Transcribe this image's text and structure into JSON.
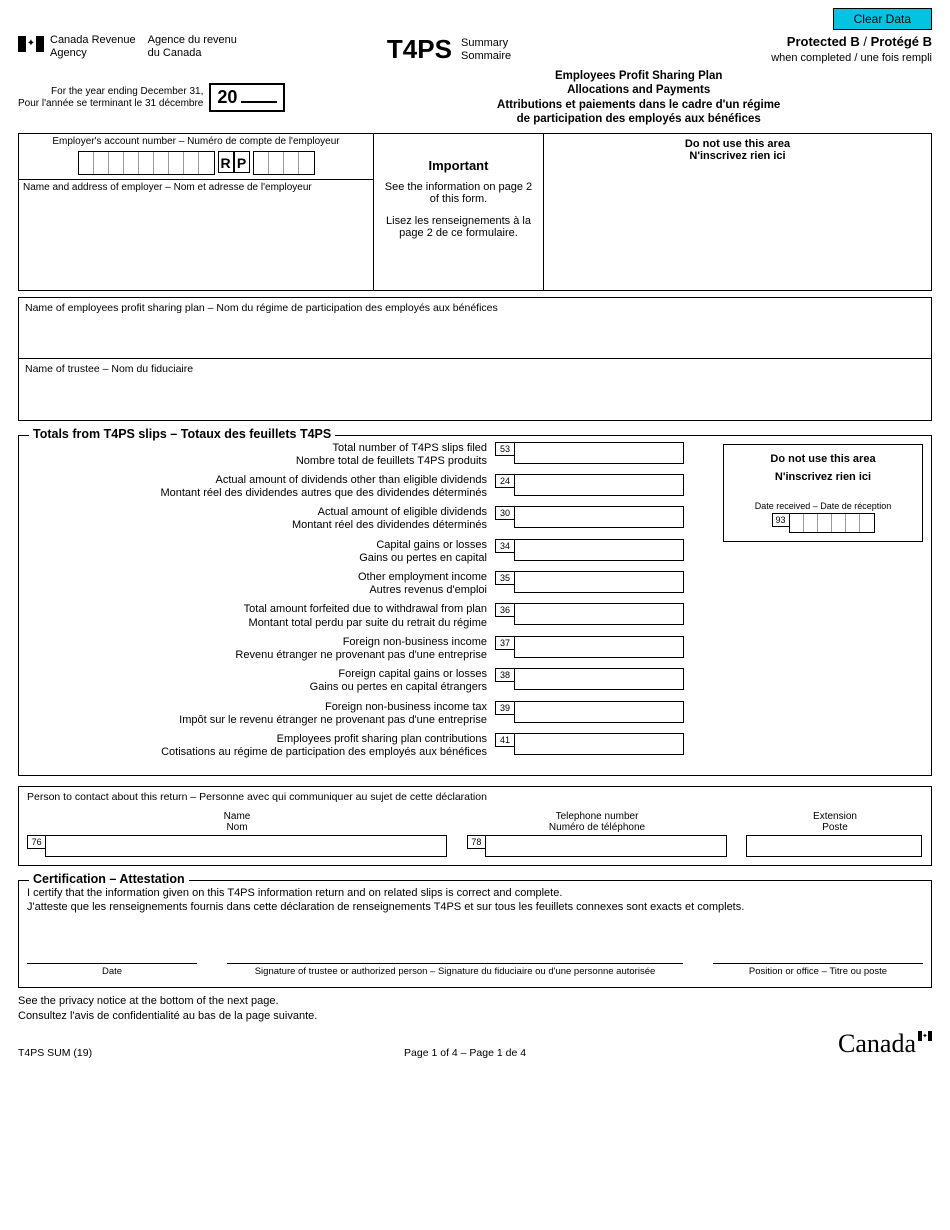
{
  "clear_button": "Clear Data",
  "agency": {
    "en1": "Canada Revenue",
    "en2": "Agency",
    "fr1": "Agence du revenu",
    "fr2": "du Canada"
  },
  "form_code": "T4PS",
  "summary": {
    "en": "Summary",
    "fr": "Sommaire"
  },
  "protected": {
    "line1a": "Protected B",
    "line1b": "Protégé B",
    "line2": "when completed / une fois rempli"
  },
  "year": {
    "en": "For the year ending December 31,",
    "fr": "Pour l'année se terminant le 31 décembre",
    "prefix": "20"
  },
  "title": {
    "l1": "Employees Profit Sharing Plan",
    "l2": "Allocations and Payments",
    "l3": "Attributions et paiements dans le cadre d'un régime",
    "l4": "de participation des employés aux bénéfices"
  },
  "top": {
    "acct_label": "Employer's account number – Numéro de compte de l'employeur",
    "rp1": "R",
    "rp2": "P",
    "name_label": "Name and address of employer – Nom et adresse de l'employeur",
    "important": "Important",
    "info_en": "See the information on page 2 of this form.",
    "info_fr": "Lisez les renseignements à la page 2 de ce formulaire.",
    "dnu_en": "Do not use this area",
    "dnu_fr": "N'inscrivez rien ici"
  },
  "plan_name_label": "Name of employees profit sharing plan – Nom du régime de participation des employés aux bénéfices",
  "trustee_label": "Name of trustee – Nom du fiduciaire",
  "totals": {
    "legend_en": "Totals from T4PS slips",
    "legend_sep": " – ",
    "legend_fr": "Totaux des feuillets T4PS",
    "rows": [
      {
        "box": "53",
        "en": "Total number of T4PS slips filed",
        "fr": "Nombre total de feuillets T4PS produits"
      },
      {
        "box": "24",
        "en": "Actual amount of dividends other than eligible dividends",
        "fr": "Montant réel des dividendes autres que des dividendes déterminés"
      },
      {
        "box": "30",
        "en": "Actual amount of eligible dividends",
        "fr": "Montant réel des dividendes déterminés"
      },
      {
        "box": "34",
        "en": "Capital gains or losses",
        "fr": "Gains ou pertes en capital"
      },
      {
        "box": "35",
        "en": "Other employment income",
        "fr": "Autres revenus d'emploi"
      },
      {
        "box": "36",
        "en": "Total amount forfeited due to withdrawal from plan",
        "fr": "Montant total perdu par suite du retrait du régime"
      },
      {
        "box": "37",
        "en": "Foreign non-business income",
        "fr": "Revenu étranger ne provenant pas d'une entreprise"
      },
      {
        "box": "38",
        "en": "Foreign capital gains or losses",
        "fr": "Gains ou pertes en capital étrangers"
      },
      {
        "box": "39",
        "en": "Foreign non-business income tax",
        "fr": "Impôt sur le revenu étranger ne provenant pas d'une entreprise"
      },
      {
        "box": "41",
        "en": "Employees profit sharing plan contributions",
        "fr": "Cotisations au régime de participation des employés aux bénéfices"
      }
    ],
    "side": {
      "dnu_en": "Do not use this area",
      "dnu_fr": "N'inscrivez rien ici",
      "date_label": "Date received – Date de réception",
      "date_box": "93"
    }
  },
  "contact": {
    "title": "Person to contact about this return – Personne avec qui communiquer au sujet de cette déclaration",
    "name_en": "Name",
    "name_fr": "Nom",
    "name_box": "76",
    "tel_en": "Telephone number",
    "tel_fr": "Numéro de téléphone",
    "tel_box": "78",
    "ext_en": "Extension",
    "ext_fr": "Poste"
  },
  "cert": {
    "legend_en": "Certification",
    "legend_sep": " – ",
    "legend_fr": "Attestation",
    "en": "I certify that the information given on this T4PS information return and on related slips is correct and complete.",
    "fr": "J'atteste que les renseignements fournis dans cette déclaration de renseignements T4PS et sur tous les feuillets connexes sont exacts et complets.",
    "date": "Date",
    "sig": "Signature of trustee or authorized person – Signature du fiduciaire ou d'une personne autorisée",
    "pos": "Position or office – Titre ou poste"
  },
  "footer": {
    "note_en": "See the privacy notice at the bottom of the next page.",
    "note_fr": "Consultez l'avis de confidentialité au bas de la page suivante.",
    "form_id": "T4PS SUM (19)",
    "page": "Page 1 of 4  –  Page 1 de 4",
    "wordmark": "Canada"
  },
  "colors": {
    "clear_bg": "#00c4e0",
    "border": "#000000",
    "bg": "#ffffff"
  }
}
